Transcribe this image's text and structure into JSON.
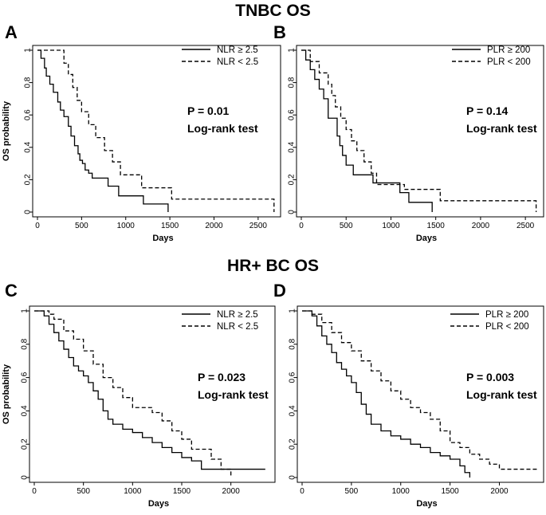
{
  "sections": {
    "top_title": "TNBC OS",
    "bottom_title": "HR+ BC OS"
  },
  "chart_data": [
    {
      "panel": "A",
      "type": "line",
      "title": "TNBC OS",
      "xlabel": "Days",
      "ylabel": "OS probability",
      "xlim": [
        0,
        2700
      ],
      "ylim": [
        0,
        1
      ],
      "xticks": [
        0,
        500,
        1000,
        1500,
        2000,
        2500
      ],
      "yticks": [
        "0",
        "0.2",
        "0.4",
        "0.6",
        "0.8",
        "1"
      ],
      "legend_position": "top-right",
      "annotation": [
        "P = 0.01",
        "Log-rank test"
      ],
      "series": [
        {
          "name": "NLR ≥ 2.5",
          "style": "solid",
          "x": [
            0,
            40,
            80,
            100,
            140,
            180,
            230,
            260,
            300,
            350,
            380,
            420,
            460,
            480,
            510,
            540,
            580,
            620,
            680,
            800,
            920,
            1200,
            1450,
            1480
          ],
          "y": [
            1,
            0.95,
            0.89,
            0.84,
            0.79,
            0.74,
            0.68,
            0.63,
            0.59,
            0.53,
            0.47,
            0.41,
            0.36,
            0.32,
            0.3,
            0.26,
            0.24,
            0.21,
            0.21,
            0.16,
            0.1,
            0.05,
            0.05,
            0
          ]
        },
        {
          "name": "NLR < 2.5",
          "style": "dashed",
          "x": [
            0,
            80,
            300,
            350,
            400,
            450,
            500,
            580,
            660,
            760,
            850,
            940,
            1180,
            1520,
            2640,
            2680
          ],
          "y": [
            1,
            1,
            0.92,
            0.85,
            0.77,
            0.69,
            0.62,
            0.54,
            0.46,
            0.38,
            0.31,
            0.23,
            0.15,
            0.08,
            0.08,
            0
          ]
        }
      ]
    },
    {
      "panel": "B",
      "type": "line",
      "xlabel": "Days",
      "ylabel": "",
      "xlim": [
        0,
        2650
      ],
      "ylim": [
        0,
        1
      ],
      "xticks": [
        0,
        500,
        1000,
        1500,
        2000,
        2500
      ],
      "yticks": [
        "0",
        "0.2",
        "0.4",
        "0.6",
        "0.8",
        "1"
      ],
      "legend_position": "top-right",
      "annotation": [
        "P = 0.14",
        "Log-rank test"
      ],
      "series": [
        {
          "name": "PLR ≥ 200",
          "style": "solid",
          "x": [
            0,
            50,
            100,
            150,
            200,
            250,
            300,
            400,
            430,
            460,
            500,
            580,
            800,
            1100,
            1200,
            1450,
            1460
          ],
          "y": [
            1,
            0.94,
            0.88,
            0.82,
            0.76,
            0.7,
            0.58,
            0.47,
            0.41,
            0.35,
            0.29,
            0.23,
            0.18,
            0.12,
            0.06,
            0.06,
            0
          ]
        },
        {
          "name": "PLR < 200",
          "style": "dashed",
          "x": [
            0,
            100,
            200,
            300,
            340,
            380,
            440,
            500,
            560,
            620,
            700,
            780,
            840,
            1150,
            1550,
            2590,
            2620
          ],
          "y": [
            1,
            0.93,
            0.86,
            0.79,
            0.72,
            0.65,
            0.58,
            0.51,
            0.44,
            0.38,
            0.31,
            0.24,
            0.17,
            0.14,
            0.07,
            0.07,
            0
          ]
        }
      ]
    },
    {
      "panel": "C",
      "type": "line",
      "title": "HR+ BC OS",
      "xlabel": "Days",
      "ylabel": "OS probability",
      "xlim": [
        0,
        2400
      ],
      "ylim": [
        0,
        1
      ],
      "xticks": [
        0,
        500,
        1000,
        1500,
        2000
      ],
      "yticks": [
        "0",
        "0.2",
        "0.4",
        "0.6",
        "0.8",
        "1"
      ],
      "legend_position": "top-right",
      "annotation": [
        "P = 0.023",
        "Log-rank test"
      ],
      "series": [
        {
          "name": "NLR ≥ 2.5",
          "style": "solid",
          "x": [
            0,
            100,
            150,
            200,
            250,
            300,
            350,
            400,
            450,
            500,
            550,
            600,
            650,
            700,
            750,
            800,
            900,
            1000,
            1100,
            1200,
            1300,
            1400,
            1500,
            1600,
            1700,
            2350
          ],
          "y": [
            1,
            0.97,
            0.92,
            0.87,
            0.82,
            0.77,
            0.72,
            0.67,
            0.64,
            0.61,
            0.57,
            0.52,
            0.47,
            0.4,
            0.35,
            0.32,
            0.29,
            0.27,
            0.24,
            0.21,
            0.18,
            0.15,
            0.12,
            0.1,
            0.05,
            0.05
          ]
        },
        {
          "name": "NLR < 2.5",
          "style": "dashed",
          "x": [
            0,
            150,
            200,
            300,
            400,
            500,
            600,
            700,
            800,
            900,
            1000,
            1200,
            1300,
            1400,
            1500,
            1600,
            1800,
            1900,
            2000
          ],
          "y": [
            1,
            0.98,
            0.95,
            0.88,
            0.83,
            0.76,
            0.68,
            0.6,
            0.54,
            0.48,
            0.42,
            0.39,
            0.34,
            0.28,
            0.23,
            0.17,
            0.11,
            0.05,
            0
          ]
        }
      ]
    },
    {
      "panel": "D",
      "type": "line",
      "xlabel": "Days",
      "ylabel": "",
      "xlim": [
        0,
        2400
      ],
      "ylim": [
        0,
        1
      ],
      "xticks": [
        0,
        500,
        1000,
        1500,
        2000
      ],
      "yticks": [
        "0",
        "0.2",
        "0.4",
        "0.6",
        "0.8",
        "1"
      ],
      "legend_position": "top-right",
      "annotation": [
        "P = 0.003",
        "Log-rank test"
      ],
      "series": [
        {
          "name": "PLR ≥ 200",
          "style": "solid",
          "x": [
            0,
            100,
            150,
            200,
            250,
            300,
            350,
            400,
            450,
            500,
            550,
            600,
            650,
            700,
            800,
            900,
            1000,
            1100,
            1200,
            1300,
            1400,
            1500,
            1600,
            1650,
            1700
          ],
          "y": [
            1,
            0.97,
            0.91,
            0.85,
            0.8,
            0.75,
            0.69,
            0.65,
            0.61,
            0.57,
            0.51,
            0.44,
            0.38,
            0.32,
            0.28,
            0.25,
            0.23,
            0.2,
            0.18,
            0.15,
            0.13,
            0.11,
            0.07,
            0.03,
            0
          ]
        },
        {
          "name": "PLR < 200",
          "style": "dashed",
          "x": [
            0,
            100,
            200,
            300,
            400,
            500,
            600,
            700,
            800,
            900,
            1000,
            1100,
            1200,
            1300,
            1400,
            1500,
            1600,
            1700,
            1800,
            1900,
            2000,
            2400
          ],
          "y": [
            1,
            0.98,
            0.93,
            0.87,
            0.81,
            0.76,
            0.7,
            0.64,
            0.58,
            0.52,
            0.47,
            0.42,
            0.39,
            0.35,
            0.28,
            0.21,
            0.18,
            0.14,
            0.11,
            0.08,
            0.05,
            0.05
          ]
        }
      ]
    }
  ]
}
